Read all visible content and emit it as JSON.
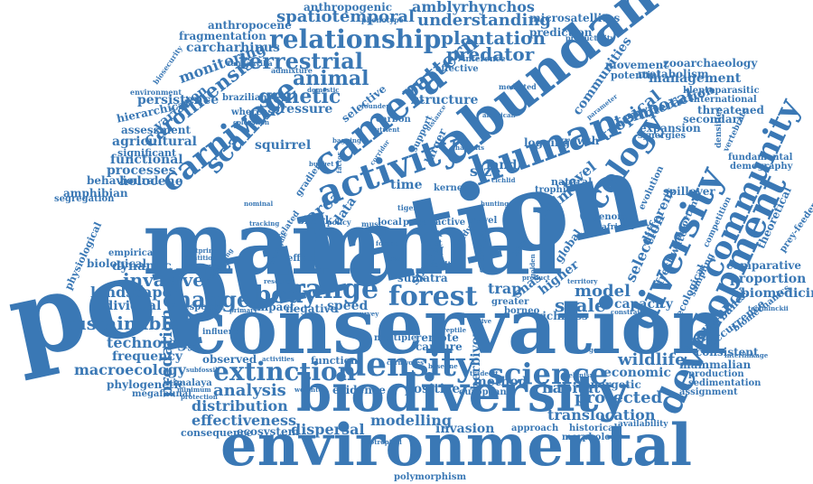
{
  "accent_color": "#3a78b5",
  "words": {
    "population": "population",
    "mammal": "mammal",
    "conservation": "conservation",
    "environmental": "environmental",
    "biodiversity": "biodiversity",
    "abundance": "abundance",
    "activity": "activity",
    "camera": "camera",
    "carnivore": "carnivore",
    "human": "human",
    "ecology": "ecology",
    "diversity": "diversity",
    "development": "development",
    "community": "community",
    "density": "density",
    "extinction": "extinction",
    "science": "science",
    "forest": "forest",
    "range": "range",
    "body": "body",
    "change": "change",
    "relationship": "relationship",
    "terrestrial": "terrestrial",
    "spatiotemporal": "spatiotemporal",
    "understanding": "understanding",
    "plantation": "plantation",
    "predator": "predator",
    "anthropogenic": "anthropogenic",
    "amblyrhynchos": "amblyrhynchos",
    "microsatellites": "microsatellites",
    "prediction": "prediction",
    "fragmentation": "fragmentation",
    "anthropocene": "anthropocene",
    "carcharhinus": "carcharhinus",
    "monitoring": "monitoring",
    "persistence": "persistence",
    "hierarchical": "hierarchical",
    "carolinensis": "carolinensis",
    "scaling": "scaling",
    "genetic": "genetic",
    "animal": "animal",
    "pressure": "pressure",
    "pattern": "pattern",
    "assessment": "assessment",
    "agricultural": "agricultural",
    "significant": "significant",
    "functional": "functional",
    "processes": "processes",
    "behavioural": "behavioural",
    "amphibian": "amphibian",
    "segregation": "segregation",
    "holocene": "holocene",
    "variation": "variation",
    "squirrel": "squirrel",
    "time": "time",
    "area": "area",
    "data": "data",
    "size": "size",
    "land": "land",
    "palm": "palm",
    "level": "level",
    "tropical": "tropical",
    "communities": "communities",
    "temporal": "temporal",
    "interaction": "interaction",
    "management": "management",
    "zooarchaeology": "zooarchaeology",
    "kleptoparasitic": "kleptoparasitic",
    "international": "international",
    "threatened": "threatened",
    "secondary": "secondary",
    "movement": "movement",
    "potential": "potential",
    "metabolism": "metabolism",
    "expansion": "expansion",
    "logging": "logging",
    "growth": "growth",
    "fundamental": "fundamental",
    "demography": "demography",
    "empirical": "empirical",
    "biological": "biological",
    "dynamic": "dynamic",
    "invasive": "invasive",
    "landscape": "landscape",
    "individual": "individual",
    "sustainable": "sustainable",
    "technology": "technology",
    "frequency": "frequency",
    "macroecology": "macroecology",
    "phylogenetic": "phylogenetic",
    "himalaya": "himalaya",
    "megafaunal": "megafaunal",
    "predation": "predation",
    "physiological": "physiological",
    "analysis": "analysis",
    "distribution": "distribution",
    "effectiveness": "effectiveness",
    "consequence": "consequence",
    "ecosystem": "ecosystem",
    "dispersal": "dispersal",
    "modelling": "modelling",
    "invasion": "invasion",
    "polymorphism": "polymorphism",
    "translocation": "translocation",
    "protected": "protected",
    "habitat": "habitat",
    "energetic": "energetic",
    "economic": "economic",
    "wildlife": "wildlife",
    "scale": "scale",
    "model": "model",
    "capacity": "capacity",
    "trap": "trap",
    "snas": "snas",
    "higher": "higher",
    "selection": "selection",
    "different": "different",
    "global": "global",
    "occupancy": "occupancy",
    "disturbance": "disturbance",
    "occurrence": "occurrence",
    "biomechanics": "biomechanics",
    "consistent": "consistent",
    "mammalian": "mammalian",
    "production": "production",
    "sedimentation": "sedimentation",
    "assignment": "assignment",
    "biomedicine": "biomedicine",
    "proportion": "proportion",
    "comparative": "comparative",
    "theoretical": "theoretical",
    "prey-feeders": "prey-feeders",
    "impact": "impact",
    "negative": "negative",
    "speed": "speed",
    "response": "response",
    "influence": "influence",
    "observed": "observed",
    "function": "function",
    "evidence": "evidence",
    "positive": "positive",
    "method": "method",
    "european": "european",
    "remote": "remote",
    "capture": "capture",
    "multiple": "multiple",
    "herbivore": "herbivore",
    "sumatra": "sumatra",
    "spatial": "spatial",
    "borneo": "borneo",
    "richness": "richness",
    "greater": "greater",
    "brazilian": "brazilian",
    "cerrado": "cerrado",
    "shark": "shark",
    "structure": "structure",
    "effective": "effective",
    "inference": "inference",
    "whereas": "whereas",
    "selective": "selective",
    "carbon": "carbon",
    "larger": "larger",
    "support": "support",
    "biosecurity": "biosecurity",
    "environment": "environment",
    "phenotype": "phenotype",
    "tanganyika": "tanganyika",
    "admixture": "admixture",
    "productivity": "productivity",
    "mediated": "mediated",
    "approach": "approach",
    "historical": "historical",
    "morphology": "morphology",
    "availability": "availability",
    "neotropical": "neotropical",
    "african": "african",
    "genome": "genome",
    "spillover": "spillover",
    "evolution": "evolution",
    "competition": "competition",
    "freshwater": "freshwater",
    "important": "important",
    "ecological": "ecological",
    "sampling": "sampling",
    "synergies": "synergies",
    "densities": "densities",
    "vertebrate": "vertebrate",
    "natural": "natural",
    "trophic": "trophic",
    "kernel": "kernel",
    "local": "local",
    "prey": "prey",
    "rate": "rate",
    "active": "active",
    "travel": "travel",
    "risk": "risk",
    "diet": "diet",
    "bird": "bird",
    "result": "result",
    "study": "study",
    "estimate": "estimate",
    "effect": "effect",
    "related": "related",
    "policy": "policy",
    "must": "must",
    "tiger": "tiger",
    "gradient": "gradient",
    "weighted": "weighted",
    "protection": "protection",
    "minimum": "minimum",
    "activities": "activities",
    "reptile": "reptile",
    "tradeoff": "tradeoff",
    "product": "product",
    "constraint": "constraint",
    "territory": "territory",
    "melanism": "melanism",
    "resource": "resource",
    "primary": "primary",
    "survey": "survey",
    "footprint": "footprint",
    "dentition": "dentition",
    "propagule": "propagule",
    "rewilding": "rewilding",
    "extent": "extent",
    "nutrient": "nutrient",
    "domestic": "domestic",
    "founder": "founder",
    "american": "american",
    "parameter": "parameter",
    "coloration": "coloration",
    "distance": "distance",
    "baseline": "baseline",
    "carnivores": "carnivores",
    "subfossil": "subfossil",
    "gene": "gene",
    "interlinkage": "interlinkage",
    "temminckii": "temminckii",
    "golden": "golden",
    "bagging": "bagging",
    "budget": "budget",
    "habitats": "habitats",
    "factor": "factor",
    "nominal": "nominal",
    "tracking": "tracking",
    "ranging": "ranging",
    "native": "native",
    "hunting": "hunting",
    "corridor": "corridor",
    "island": "island",
    "cichlid": "cichlid",
    "forage": "forage",
    "exploit": "exploit",
    "loss": "loss"
  }
}
